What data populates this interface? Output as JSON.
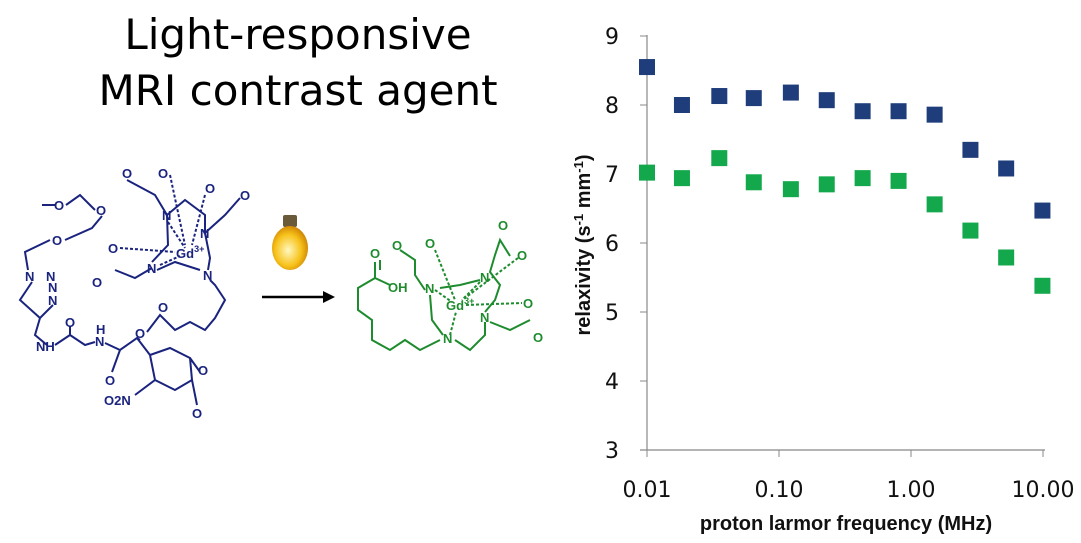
{
  "title": {
    "line1": "Light-responsive",
    "line2": "MRI contrast agent"
  },
  "scheme": {
    "caged_color": "#1a237e",
    "released_color": "#1e8c2e",
    "light_icon": "light-bulb-icon",
    "arrow_icon": "reaction-arrow-icon",
    "caged_labels": [
      "O",
      "O",
      "O",
      "N",
      "N",
      "N",
      "N",
      "NH",
      "N",
      "H",
      "O",
      "O",
      "O",
      "O",
      "O",
      "O",
      "O",
      "O",
      "Gd",
      "N",
      "N",
      "N",
      "N",
      "O",
      "O",
      "O",
      "O",
      "O",
      "O",
      "O",
      "O"
    ],
    "caged_gd_charge": "3+",
    "nitro": "O2N",
    "released_labels": [
      "OH",
      "O",
      "O",
      "O",
      "N",
      "Gd",
      "N",
      "O",
      "O",
      "O",
      "N",
      "O",
      "N"
    ],
    "released_gd_charge": "3+"
  },
  "chart_data": {
    "type": "scatter",
    "title": "",
    "xlabel": "proton larmor frequency (MHz)",
    "ylabel": "relaxivity (s-1 mm-1)",
    "ylabel_parts": {
      "main": "relaxivity (s",
      "sup1": "-1",
      "mid": " mm",
      "sup2": "-1",
      "end": ")"
    },
    "xscale": "log",
    "xlim": [
      0.01,
      10
    ],
    "ylim": [
      3,
      9
    ],
    "xticks": [
      "0.01",
      "0.10",
      "1.00",
      "10.00"
    ],
    "xtick_values": [
      0.01,
      0.1,
      1,
      10
    ],
    "yticks": [
      "3",
      "4",
      "5",
      "6",
      "7",
      "8",
      "9"
    ],
    "grid": false,
    "legend": "none",
    "marker": "square",
    "x": [
      0.01,
      0.0184,
      0.0353,
      0.0644,
      0.123,
      0.23,
      0.43,
      0.805,
      1.51,
      2.82,
      5.26,
      9.9
    ],
    "series": [
      {
        "color": "#1f3d7a",
        "values": [
          8.55,
          8.0,
          8.13,
          8.1,
          8.18,
          8.07,
          7.91,
          7.91,
          7.86,
          7.35,
          7.08,
          6.47
        ]
      },
      {
        "color": "#12a84b",
        "values": [
          7.02,
          6.94,
          7.23,
          6.88,
          6.78,
          6.85,
          6.94,
          6.9,
          6.56,
          6.18,
          5.79,
          5.38
        ]
      }
    ]
  }
}
